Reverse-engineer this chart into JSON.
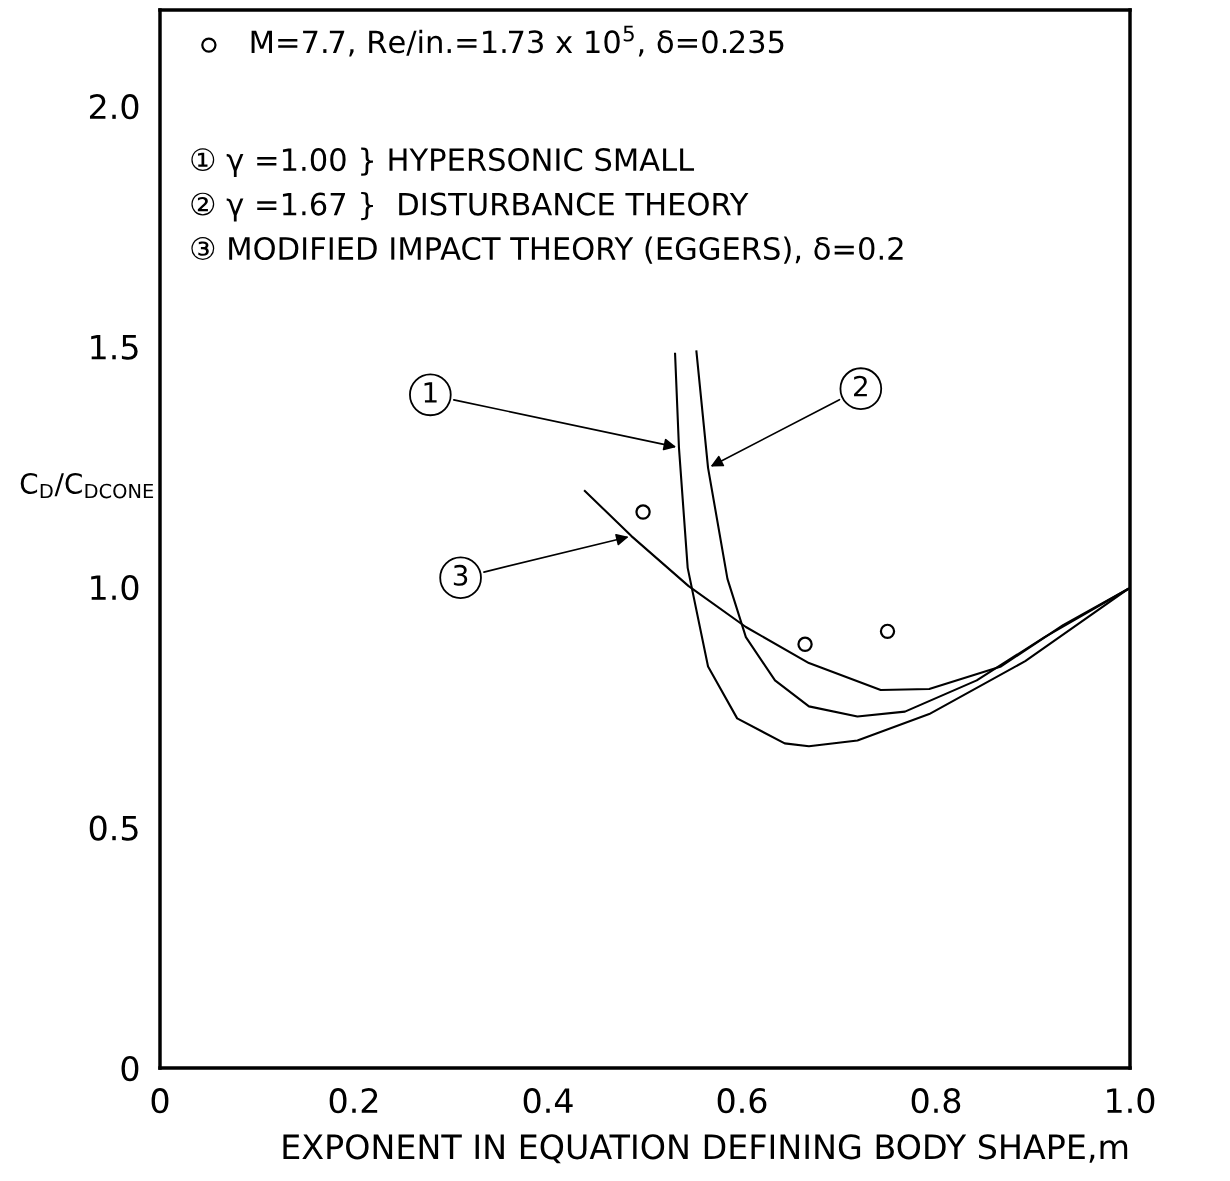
{
  "chart_data": {
    "type": "line",
    "xlabel": "EXPONENT IN EQUATION DEFINING BODY SHAPE,m",
    "ylabel": "C$_{D}$/C$_{DCONE}$",
    "xlim": [
      0,
      1.0
    ],
    "ylim": [
      0,
      2.2
    ],
    "xticks": [
      0,
      0.2,
      0.4,
      0.6,
      0.8,
      {
        "value": 1.0,
        "label": "1.0"
      }
    ],
    "yticks": [
      0,
      0.5,
      {
        "value": 1.0,
        "label": "1.0"
      },
      1.5,
      {
        "value": 2.0,
        "label": "2.0"
      }
    ],
    "grid": false,
    "legend": "top left",
    "line_style": "solid",
    "series": [
      {
        "color": "#000000",
        "x": [
          0.531,
          0.535,
          0.544,
          0.565,
          0.595,
          0.644,
          0.669,
          0.719,
          0.793,
          0.892,
          0.998
        ],
        "values": [
          1.485,
          1.29,
          1.04,
          0.835,
          0.727,
          0.675,
          0.669,
          0.681,
          0.736,
          0.846,
          0.996
        ]
      },
      {
        "color": "#000000",
        "x": [
          0.553,
          0.565,
          0.585,
          0.604,
          0.634,
          0.669,
          0.719,
          0.768,
          0.842,
          0.912,
          0.998
        ],
        "values": [
          1.49,
          1.248,
          1.017,
          0.896,
          0.806,
          0.752,
          0.731,
          0.741,
          0.806,
          0.896,
          0.996
        ]
      },
      {
        "color": "#000000",
        "x": [
          0.438,
          0.486,
          0.545,
          0.604,
          0.669,
          0.743,
          0.793,
          0.867,
          0.931,
          0.998
        ],
        "values": [
          1.2,
          1.106,
          1.002,
          0.917,
          0.842,
          0.786,
          0.788,
          0.835,
          0.921,
          0.996
        ]
      },
      {
        "type": "scatter",
        "name": "M=7.7, Re/in.=1.73 x 10$^{5}$, δ=0.235",
        "color": "#000000",
        "marker": "circle",
        "x": [
          0.498,
          0.665,
          0.75
        ],
        "values": [
          1.156,
          0.881,
          0.908
        ]
      }
    ],
    "annotations": [
      "① γ =1.00 } HYPERSONIC SMALL",
      "② γ =1.67 }  DISTURBANCE THEORY",
      "③ MODIFIED IMPACT THEORY (EGGERS), δ=0.2",
      {
        "text": "1",
        "x": 0.535,
        "y": 1.29
      },
      {
        "text": "2",
        "x": 0.565,
        "y": 1.248
      },
      {
        "text": "3",
        "x": 0.486,
        "y": 1.106
      }
    ]
  }
}
